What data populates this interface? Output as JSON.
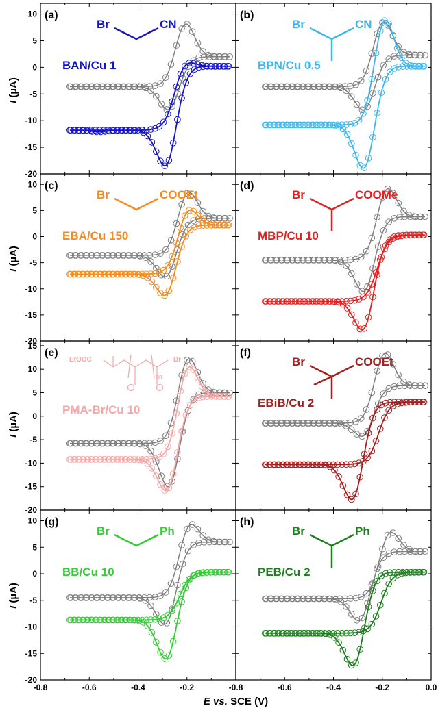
{
  "chart_data": {
    "type": "scatter",
    "xlabel_parts": [
      "E",
      " vs.",
      " SCE (V)"
    ],
    "ylabel_parts": [
      "I",
      " (µA)"
    ],
    "x_ticks_left": [
      "-0.8",
      "-0.6",
      "-0.4",
      "-0.2"
    ],
    "x_ticks_right": [
      "-0.8",
      "-0.6",
      "-0.4",
      "-0.2",
      "0.0"
    ],
    "reference_color": "#7f7f7f",
    "panels": [
      {
        "tag": "(a)",
        "system": "BAN/Cu 1",
        "color": "#1515c8",
        "struct": "linear",
        "sub_left": "Br",
        "sub_right": "CN",
        "ylim": [
          -20,
          12
        ],
        "yticks": [
          "10",
          "5",
          "0",
          "-5",
          "-10",
          "-15",
          "-20"
        ],
        "ref": {
          "start": -3.6,
          "peak_e": -0.21,
          "peak_i": 9.6,
          "end": 2.0,
          "anod_e": -0.265,
          "anod_i": -12.5
        },
        "series": {
          "start": -11.8,
          "peak_e": -0.215,
          "peak_i": 2.0,
          "end": 0.2,
          "anod_e": -0.275,
          "anod_i": -16.0,
          "early_e": -0.56,
          "early_i": -14.3
        }
      },
      {
        "tag": "(b)",
        "system": "BPN/Cu 0.5",
        "color": "#3fb6ea",
        "struct": "branched",
        "sub_left": "Br",
        "sub_right": "CN",
        "ylim": [
          -20,
          12
        ],
        "yticks": [
          "10",
          "5",
          "0",
          "-5",
          "-10",
          "-15",
          "-20"
        ],
        "ref": {
          "start": -3.6,
          "peak_e": -0.2,
          "peak_i": 10.0,
          "end": 2.3,
          "anod_e": -0.265,
          "anod_i": -12.6
        },
        "series": {
          "start": -10.8,
          "peak_e": -0.195,
          "peak_i": 11.3,
          "end": 0.2,
          "anod_e": -0.265,
          "anod_i": -17.4
        }
      },
      {
        "tag": "(c)",
        "system": "EBA/Cu 150",
        "color": "#f58a1f",
        "struct": "linear",
        "sub_left": "Br",
        "sub_right": "COOEt",
        "ylim": [
          -20,
          12
        ],
        "yticks": [
          "10",
          "5",
          "0",
          "-5",
          "-10",
          "-15",
          "-20"
        ],
        "ref": {
          "start": -3.6,
          "peak_e": -0.2,
          "peak_i": 10.0,
          "end": 3.5,
          "anod_e": -0.275,
          "anod_i": -12.5
        },
        "series": {
          "start": -7.2,
          "peak_e": -0.2,
          "peak_i": 6.6,
          "end": 2.2,
          "anod_e": -0.275,
          "anod_i": -12.8
        }
      },
      {
        "tag": "(d)",
        "system": "MBP/Cu 10",
        "color": "#e61e1e",
        "struct": "branched",
        "sub_left": "Br",
        "sub_right": "COOMe",
        "ylim": [
          -20,
          12
        ],
        "yticks": [
          "10",
          "5",
          "0",
          "-5",
          "-10",
          "-15",
          "-20"
        ],
        "ref": {
          "start": -4.5,
          "peak_e": -0.185,
          "peak_i": 10.9,
          "end": 3.8,
          "anod_e": -0.265,
          "anod_i": -14.7
        },
        "series": {
          "start": -12.4,
          "peak_e": -0.185,
          "peak_i": 0.3,
          "end": 0.3,
          "anod_e": -0.265,
          "anod_i": -14.8
        }
      },
      {
        "tag": "(e)",
        "system": "PMA-Br/Cu 10",
        "color": "#f5a6a6",
        "struct": "polymer",
        "sub_left": "EtOOC",
        "sub_right": "Br",
        "sub_index": "30",
        "ylim": [
          -20,
          16
        ],
        "yticks": [
          "15",
          "10",
          "5",
          "0",
          "-5",
          "-10",
          "-15",
          "-20"
        ],
        "ref": {
          "start": -5.8,
          "peak_e": -0.2,
          "peak_i": 14.5,
          "end": 5.0,
          "anod_e": -0.265,
          "anod_i": -18.5
        },
        "series": {
          "start": -9.2,
          "peak_e": -0.2,
          "peak_i": 13.0,
          "end": 4.2,
          "anod_e": -0.27,
          "anod_i": -16.2
        }
      },
      {
        "tag": "(f)",
        "system": "EBiB/Cu 2",
        "color": "#a51e1e",
        "struct": "tertiary",
        "sub_left": "Br",
        "sub_right": "COOEt",
        "ylim": [
          -20,
          16
        ],
        "yticks": [
          "15",
          "10",
          "5",
          "0",
          "-5",
          "-10",
          "-15",
          "-20"
        ],
        "ref": {
          "start": -1.5,
          "peak_e": -0.195,
          "peak_i": 15.2,
          "end": 6.5,
          "anod_e": -0.265,
          "anod_i": -11.2
        },
        "series": {
          "start": -10.3,
          "peak_e": -0.18,
          "peak_i": 3.0,
          "end": 3.0,
          "anod_e": -0.31,
          "anod_i": -17.0
        }
      },
      {
        "tag": "(g)",
        "system": "BB/Cu 10",
        "color": "#33cc33",
        "struct": "linear",
        "sub_left": "Br",
        "sub_right": "Ph",
        "ylim": [
          -20,
          12
        ],
        "yticks": [
          "10",
          "5",
          "0",
          "-5",
          "-10",
          "-15",
          "-20"
        ],
        "ref": {
          "start": -4.5,
          "peak_e": -0.195,
          "peak_i": 11.0,
          "end": 6.0,
          "anod_e": -0.275,
          "anod_i": -14.0
        },
        "series": {
          "start": -8.7,
          "peak_e": -0.195,
          "peak_i": 0.3,
          "end": 0.3,
          "anod_e": -0.275,
          "anod_i": -16.2
        }
      },
      {
        "tag": "(h)",
        "system": "PEB/Cu 2",
        "color": "#1e7f1e",
        "struct": "branched",
        "sub_left": "Br",
        "sub_right": "Ph",
        "ylim": [
          -20,
          12
        ],
        "yticks": [
          "10",
          "5",
          "0",
          "-5",
          "-10",
          "-15",
          "-20"
        ],
        "ref": {
          "start": -4.7,
          "peak_e": -0.175,
          "peak_i": 9.4,
          "end": 4.2,
          "anod_e": -0.28,
          "anod_i": -12.8
        },
        "series": {
          "start": -11.2,
          "peak_e": -0.17,
          "peak_i": 0.3,
          "end": 0.3,
          "anod_e": -0.305,
          "anod_i": -15.3
        }
      }
    ]
  }
}
